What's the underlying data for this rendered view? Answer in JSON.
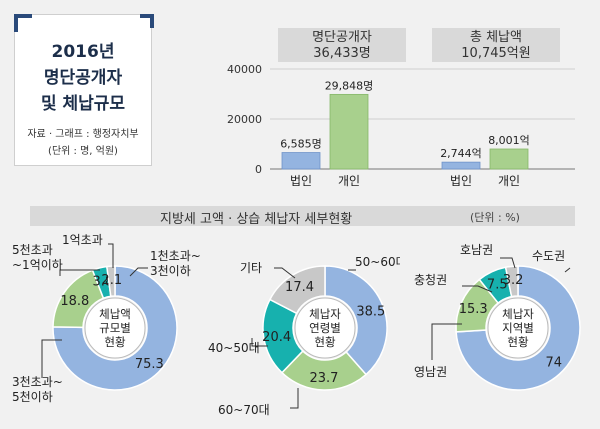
{
  "title_box": {
    "line1": "2016년",
    "line2": "명단공개자",
    "line3": "및 체납규모",
    "source": "자료 · 그래프 : 행정자치부",
    "unit": "(단위 : 명, 억원)"
  },
  "headers": {
    "left_line1": "명단공개자",
    "left_line2": "36,433명",
    "right_line1": "총 체납액",
    "right_line2": "10,745억원"
  },
  "section": {
    "title": "지방세 고액 · 상습 체납자 세부현황",
    "unit": "(단위 : %)"
  },
  "colors": {
    "blue": "#94b4e0",
    "green": "#a8d08d",
    "teal": "#17b1ae",
    "gray": "#c8c8c8"
  },
  "chart_data": [
    {
      "type": "bar",
      "yticks": [
        "40000",
        "20000",
        "0"
      ],
      "ylim": [
        0,
        40000
      ],
      "groups": [
        {
          "bars": [
            {
              "category": "법인",
              "value": 6585,
              "label": "6,585명",
              "color": "#94b4e0"
            },
            {
              "category": "개인",
              "value": 29848,
              "label": "29,848명",
              "color": "#a8d08d"
            }
          ]
        },
        {
          "bars": [
            {
              "category": "법인",
              "value": 2744,
              "label": "2,744억",
              "color": "#94b4e0"
            },
            {
              "category": "개인",
              "value": 8001,
              "label": "8,001억",
              "color": "#a8d08d"
            }
          ]
        }
      ]
    },
    {
      "type": "pie",
      "center_label": [
        "체납액",
        "규모별",
        "현황"
      ],
      "slices": [
        {
          "label": "1천초과~\n3천이하",
          "value": 75.3,
          "color": "#94b4e0"
        },
        {
          "label": "3천초과~\n5천이하",
          "value": 18.8,
          "color": "#a8d08d"
        },
        {
          "label": "5천초과\n~1억이하",
          "value": 3.8,
          "color": "#17b1ae"
        },
        {
          "label": "1억초과",
          "value": 2.1,
          "color": "#c8c8c8"
        }
      ]
    },
    {
      "type": "pie",
      "center_label": [
        "체납자",
        "연령별",
        "현황"
      ],
      "slices": [
        {
          "label": "50~60대",
          "value": 38.5,
          "color": "#94b4e0"
        },
        {
          "label": "60~70대",
          "value": 23.7,
          "color": "#a8d08d"
        },
        {
          "label": "40~50대",
          "value": 20.4,
          "color": "#17b1ae"
        },
        {
          "label": "기타",
          "value": 17.4,
          "color": "#c8c8c8"
        }
      ]
    },
    {
      "type": "pie",
      "center_label": [
        "체납자",
        "지역별",
        "현황"
      ],
      "slices": [
        {
          "label": "수도권",
          "value": 74,
          "color": "#94b4e0"
        },
        {
          "label": "영남권",
          "value": 15.3,
          "color": "#a8d08d"
        },
        {
          "label": "충청권",
          "value": 7.5,
          "color": "#17b1ae"
        },
        {
          "label": "호남권",
          "value": 3.2,
          "color": "#c8c8c8"
        }
      ]
    }
  ]
}
